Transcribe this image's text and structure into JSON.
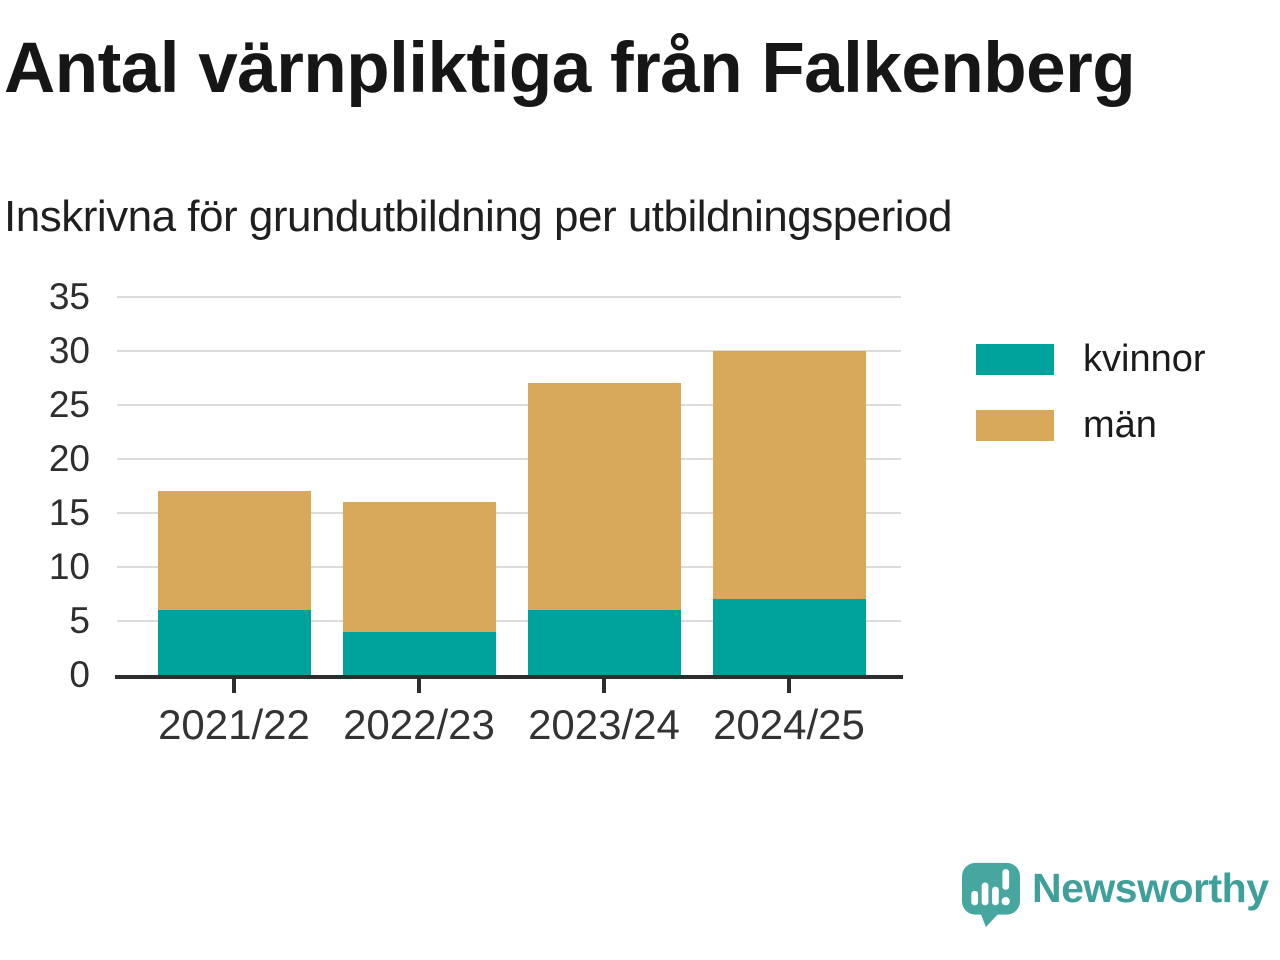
{
  "chart_data": {
    "type": "bar",
    "stacked": true,
    "title": "Antal värnpliktiga från Falkenberg",
    "subtitle": "Inskrivna för grundutbildning per utbildningsperiod",
    "categories": [
      "2021/22",
      "2022/23",
      "2023/24",
      "2024/25"
    ],
    "series": [
      {
        "name": "kvinnor",
        "color": "#00A39B",
        "values": [
          6,
          4,
          6,
          7
        ]
      },
      {
        "name": "män",
        "color": "#D8A95A",
        "values": [
          11,
          12,
          21,
          23
        ]
      }
    ],
    "totals": [
      17,
      16,
      27,
      30
    ],
    "xlabel": "",
    "ylabel": "",
    "ylim": [
      0,
      35
    ],
    "yticks": [
      0,
      5,
      10,
      15,
      20,
      25,
      30,
      35
    ],
    "grid": true,
    "gridline_color": "#dcdcdc",
    "axis_color": "#2d2d2d",
    "legend_position": "right"
  },
  "branding": {
    "logo_text": "Newsworthy",
    "wordmark_color": "#3FA09B",
    "icon_color": "#47A69F"
  }
}
